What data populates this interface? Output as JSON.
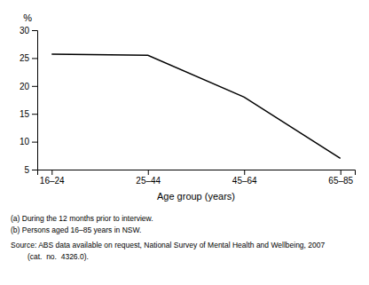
{
  "chart_data": {
    "type": "line",
    "categories": [
      "16–24",
      "25–44",
      "45–64",
      "65–85"
    ],
    "values": [
      25.7,
      25.5,
      18.0,
      7.0
    ],
    "color": "#000000",
    "xlabel": "Age group (years)",
    "ylabel": "%",
    "ylim": [
      5,
      30
    ],
    "yticks": [
      5,
      10,
      15,
      20,
      25,
      30
    ],
    "annotations": [
      "(a) During the 12 months prior to interview.",
      "(b) Persons aged 16–85 years in NSW.",
      "Source: ABS data available on request, National Survey of Mental Health and Wellbeing, 2007",
      "        (cat.  no.  4326.0)."
    ]
  }
}
